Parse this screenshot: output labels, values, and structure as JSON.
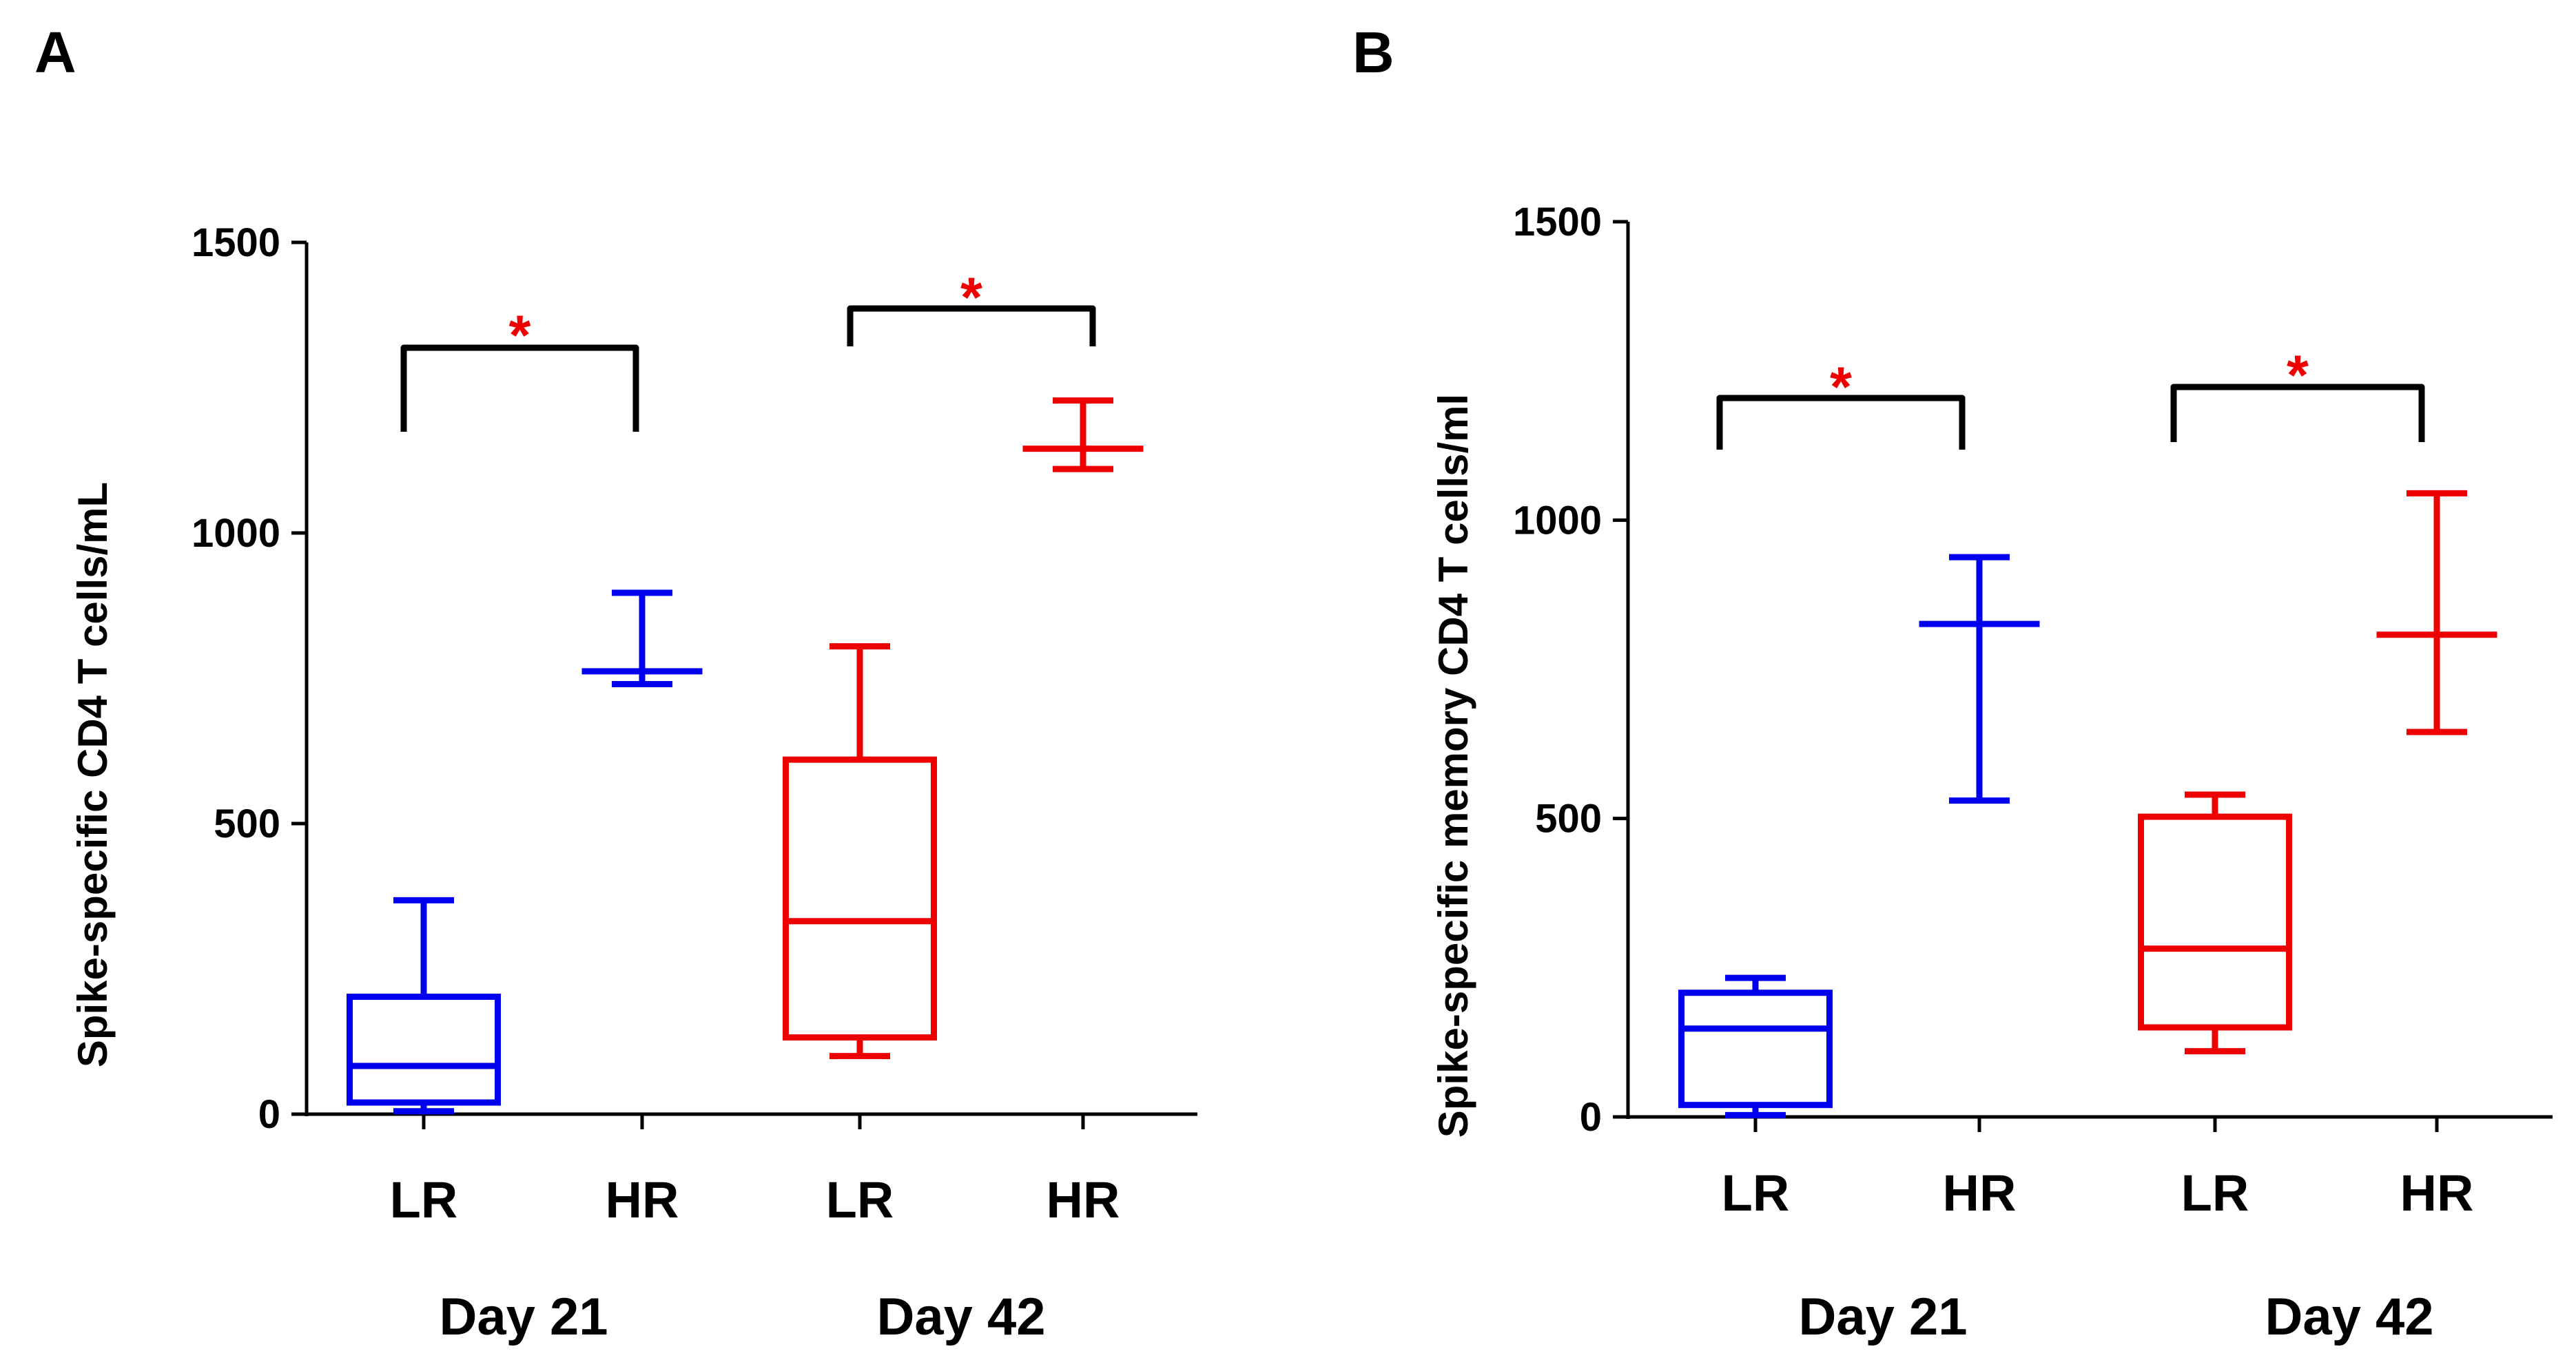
{
  "chart_data": [
    {
      "panel": "A",
      "type": "box",
      "ylabel": "Spike-specific CD4 T cells/mL",
      "ylim": [
        0,
        1500
      ],
      "yticks": [
        0,
        500,
        1000,
        1500
      ],
      "groups": [
        {
          "label": "Day 21",
          "categories": [
            "LR",
            "HR"
          ]
        },
        {
          "label": "Day 42",
          "categories": [
            "LR",
            "HR"
          ]
        }
      ],
      "series": [
        {
          "group": "Day 21",
          "category": "LR",
          "color": "#0000ee",
          "min": 5,
          "q1": 20,
          "median": 83,
          "q3": 202,
          "max": 368
        },
        {
          "group": "Day 21",
          "category": "HR",
          "color": "#0000ee",
          "min": 740,
          "q1": 762,
          "median": 762,
          "q3": 762,
          "max": 897
        },
        {
          "group": "Day 42",
          "category": "LR",
          "color": "#ee0000",
          "min": 100,
          "q1": 132,
          "median": 332,
          "q3": 610,
          "max": 805
        },
        {
          "group": "Day 42",
          "category": "HR",
          "color": "#ee0000",
          "min": 1110,
          "q1": 1145,
          "median": 1145,
          "q3": 1145,
          "max": 1228
        }
      ],
      "significance": [
        {
          "group": "Day 21",
          "marker": "*",
          "color": "#ee0000"
        },
        {
          "group": "Day 42",
          "marker": "*",
          "color": "#ee0000"
        }
      ]
    },
    {
      "panel": "B",
      "type": "box",
      "ylabel": "Spike-specific memory CD4 T cells/ml",
      "ylim": [
        0,
        1500
      ],
      "yticks": [
        0,
        500,
        1000,
        1500
      ],
      "groups": [
        {
          "label": "Day 21",
          "categories": [
            "LR",
            "HR"
          ]
        },
        {
          "label": "Day 42",
          "categories": [
            "LR",
            "HR"
          ]
        }
      ],
      "series": [
        {
          "group": "Day 21",
          "category": "LR",
          "color": "#0000ee",
          "min": 3,
          "q1": 20,
          "median": 148,
          "q3": 208,
          "max": 233
        },
        {
          "group": "Day 21",
          "category": "HR",
          "color": "#0000ee",
          "min": 530,
          "q1": 826,
          "median": 826,
          "q3": 826,
          "max": 938
        },
        {
          "group": "Day 42",
          "category": "LR",
          "color": "#ee0000",
          "min": 110,
          "q1": 150,
          "median": 282,
          "q3": 503,
          "max": 540
        },
        {
          "group": "Day 42",
          "category": "HR",
          "color": "#ee0000",
          "min": 645,
          "q1": 808,
          "median": 808,
          "q3": 808,
          "max": 1045
        }
      ],
      "significance": [
        {
          "group": "Day 21",
          "marker": "*",
          "color": "#ee0000"
        },
        {
          "group": "Day 42",
          "marker": "*",
          "color": "#ee0000"
        }
      ]
    }
  ]
}
